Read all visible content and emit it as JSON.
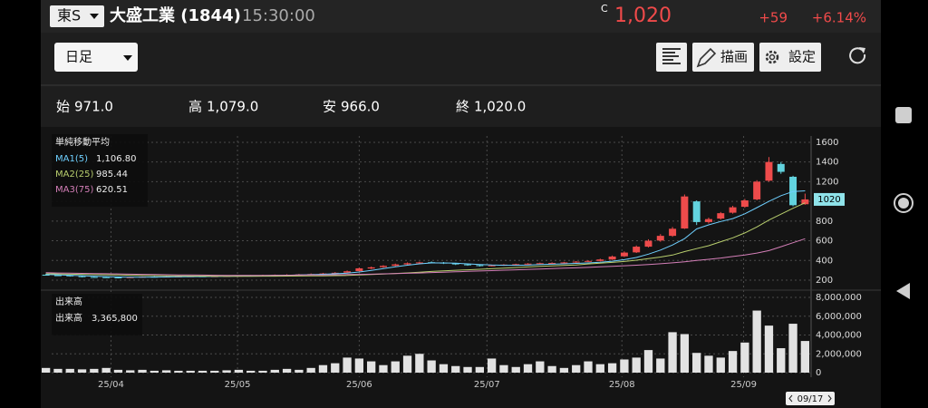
{
  "header": {
    "exchange": "東S",
    "name": "大盛工業 (1844)",
    "time": "15:30:00",
    "price_flag": "C",
    "price": "1,020",
    "change": "+59",
    "change_pct": "+6.14%"
  },
  "toolbar": {
    "period": "日足",
    "draw": "描画",
    "settings": "設定"
  },
  "ohlc": [
    {
      "label": "始",
      "value": "971.0"
    },
    {
      "label": "高",
      "value": "1,079.0"
    },
    {
      "label": "安",
      "value": "966.0"
    },
    {
      "label": "終",
      "value": "1,020.0"
    }
  ],
  "chart_data": [
    {
      "type": "candlestick",
      "legend_title": "単純移動平均",
      "open": [
        255,
        250,
        248,
        240,
        232,
        230,
        228,
        225,
        230,
        235,
        233,
        236,
        238,
        240,
        237,
        240,
        242,
        245,
        248,
        250,
        252,
        255,
        258,
        262,
        268,
        276,
        292,
        318,
        332,
        346,
        360,
        372,
        382,
        378,
        370,
        360,
        352,
        344,
        350,
        358,
        362,
        368,
        372,
        375,
        380,
        388,
        395,
        410,
        442,
        482,
        540,
        602,
        650,
        725,
        1000,
        790,
        825,
        885,
        945,
        1020,
        1210,
        1380,
        1250,
        971
      ],
      "high": [
        262,
        256,
        251,
        243,
        236,
        234,
        231,
        234,
        238,
        239,
        240,
        242,
        244,
        243,
        244,
        246,
        249,
        252,
        255,
        257,
        260,
        263,
        268,
        274,
        282,
        298,
        328,
        338,
        352,
        368,
        380,
        388,
        390,
        384,
        374,
        364,
        356,
        355,
        363,
        367,
        373,
        378,
        381,
        386,
        394,
        402,
        418,
        450,
        492,
        552,
        615,
        668,
        740,
        1070,
        1010,
        835,
        892,
        955,
        1025,
        1215,
        1450,
        1400,
        1260,
        1079
      ],
      "low": [
        246,
        244,
        236,
        228,
        225,
        224,
        218,
        222,
        227,
        230,
        231,
        234,
        235,
        234,
        235,
        237,
        240,
        242,
        245,
        247,
        249,
        251,
        255,
        259,
        264,
        272,
        288,
        312,
        326,
        340,
        355,
        366,
        372,
        364,
        354,
        346,
        338,
        340,
        346,
        353,
        358,
        364,
        367,
        371,
        376,
        384,
        390,
        405,
        436,
        476,
        532,
        590,
        640,
        720,
        760,
        775,
        815,
        875,
        935,
        1010,
        1200,
        1280,
        950,
        966
      ],
      "close": [
        250,
        248,
        240,
        232,
        230,
        228,
        225,
        230,
        235,
        233,
        236,
        238,
        240,
        237,
        240,
        242,
        245,
        248,
        250,
        252,
        255,
        258,
        262,
        268,
        275,
        290,
        320,
        330,
        345,
        360,
        372,
        380,
        378,
        370,
        360,
        352,
        345,
        350,
        358,
        362,
        368,
        372,
        375,
        380,
        388,
        395,
        410,
        440,
        480,
        540,
        600,
        650,
        722,
        1050,
        790,
        820,
        880,
        940,
        1010,
        1200,
        1400,
        1300,
        961,
        1020
      ],
      "up_color": "#ee4b4b",
      "down_color": "#62d3de",
      "series": [
        {
          "name": "MA1(5)",
          "current": "1,106.80",
          "color": "#6fd0ff",
          "values": [
            258,
            254,
            250,
            245,
            240,
            236,
            232,
            230,
            230,
            231,
            232,
            234,
            236,
            237,
            238,
            239,
            241,
            243,
            245,
            247,
            250,
            253,
            256,
            260,
            265,
            271,
            283,
            299,
            317,
            335,
            352,
            366,
            375,
            375,
            372,
            366,
            359,
            354,
            351,
            351,
            353,
            358,
            362,
            366,
            370,
            375,
            381,
            392,
            408,
            430,
            464,
            506,
            557,
            622,
            720,
            762,
            796,
            825,
            874,
            937,
            1000,
            1058,
            1100,
            1106.8
          ]
        },
        {
          "name": "MA2(25)",
          "current": "985.44",
          "color": "#b9cf6e",
          "values": [
            265,
            263,
            261,
            259,
            256,
            254,
            252,
            250,
            248,
            246,
            244,
            243,
            242,
            241,
            240,
            239,
            239,
            239,
            240,
            240,
            241,
            242,
            243,
            244,
            246,
            248,
            252,
            257,
            262,
            268,
            274,
            281,
            288,
            294,
            300,
            305,
            310,
            316,
            322,
            328,
            334,
            340,
            345,
            350,
            355,
            365,
            372,
            380,
            390,
            402,
            418,
            435,
            455,
            490,
            520,
            550,
            590,
            630,
            680,
            740,
            810,
            870,
            930,
            985.44
          ]
        },
        {
          "name": "MA3(75)",
          "current": "620.51",
          "color": "#d47fb8",
          "values": [
            275,
            273,
            271,
            269,
            267,
            265,
            263,
            261,
            259,
            257,
            255,
            253,
            252,
            251,
            250,
            249,
            249,
            249,
            249,
            250,
            250,
            251,
            252,
            253,
            255,
            257,
            259,
            261,
            264,
            267,
            270,
            273,
            277,
            281,
            285,
            289,
            293,
            297,
            301,
            305,
            309,
            313,
            317,
            321,
            325,
            330,
            335,
            340,
            346,
            352,
            359,
            367,
            376,
            387,
            400,
            412,
            425,
            440,
            456,
            475,
            500,
            540,
            580,
            620.51
          ]
        }
      ],
      "last_price": 1020,
      "xlim": [
        -0.5,
        63.5
      ],
      "xticks": [
        {
          "value": 5.4,
          "label": "25/04"
        },
        {
          "value": 15.9,
          "label": "25/05"
        },
        {
          "value": 26,
          "label": "25/06"
        },
        {
          "value": 36.6,
          "label": "25/07"
        },
        {
          "value": 47.8,
          "label": "25/08"
        },
        {
          "value": 57.9,
          "label": "25/09"
        }
      ],
      "ylim": [
        117,
        1664
      ],
      "yticks": [
        200,
        400,
        600,
        800,
        1000,
        1200,
        1400,
        1600
      ],
      "grid": true
    },
    {
      "type": "bar",
      "title": "出来高",
      "legend": {
        "name": "出来高",
        "value": "3,365,800"
      },
      "color": "#e2e2e2",
      "values": [
        500000,
        400000,
        400000,
        350000,
        400000,
        500000,
        300000,
        250000,
        300000,
        200000,
        250000,
        200000,
        200000,
        200000,
        200000,
        250000,
        300000,
        200000,
        200000,
        300000,
        400000,
        300000,
        500000,
        800000,
        1000000,
        1600000,
        1500000,
        1200000,
        800000,
        1200000,
        1800000,
        2000000,
        1300000,
        900000,
        700000,
        600000,
        600000,
        1500000,
        800000,
        600000,
        900000,
        1200000,
        700000,
        500000,
        800000,
        1200000,
        900000,
        1000000,
        1400000,
        1600000,
        2400000,
        1500000,
        4300000,
        4100000,
        2100000,
        1800000,
        1600000,
        2300000,
        3200000,
        6600000,
        5000000,
        2600000,
        5200000,
        3365800
      ],
      "ylim": [
        -385000,
        8580000
      ],
      "yticks": [
        0,
        {
          "value": 2000000,
          "label": "2,000,000"
        },
        {
          "value": 4000000,
          "label": "4,000,000"
        },
        {
          "value": 6000000,
          "label": "6,000,000"
        },
        {
          "value": 8000000,
          "label": "8,000,000"
        }
      ],
      "grid": true
    }
  ],
  "cursor_date": "09/17"
}
